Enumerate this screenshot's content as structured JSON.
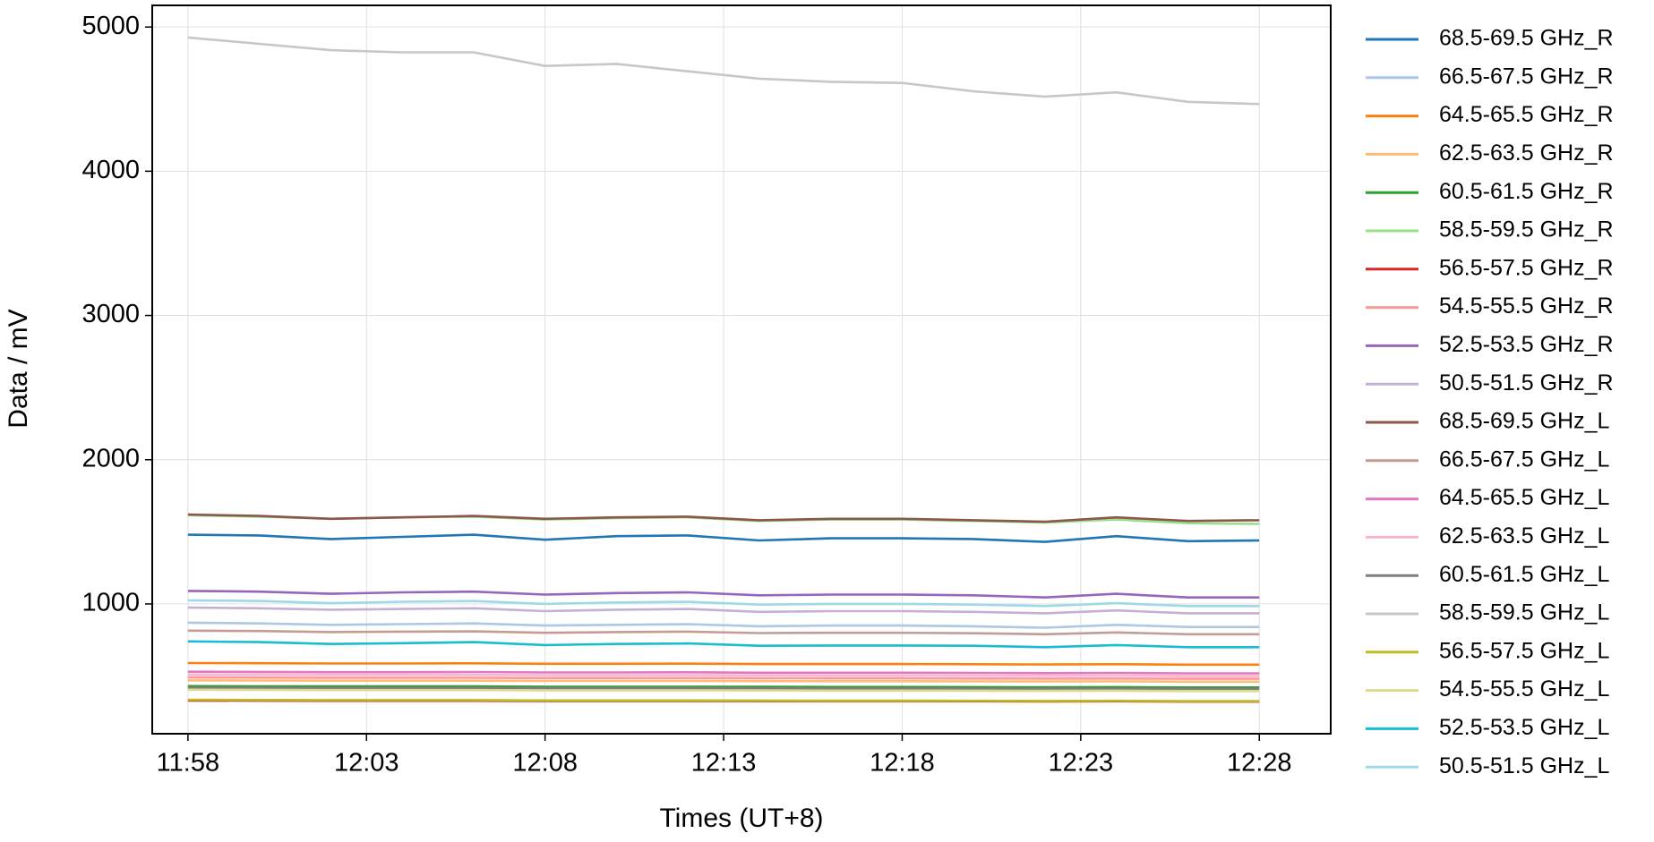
{
  "chart_data": {
    "type": "line",
    "x_label": "Times (UT+8)",
    "y_label": "Data / mV",
    "x": [
      "11:58",
      "12:00",
      "12:02",
      "12:04",
      "12:06",
      "12:08",
      "12:10",
      "12:12",
      "12:14",
      "12:16",
      "12:18",
      "12:20",
      "12:22",
      "12:24",
      "12:26",
      "12:28"
    ],
    "xlim": [
      "11:57",
      "12:30"
    ],
    "xticks": [
      "11:58",
      "12:03",
      "12:08",
      "12:13",
      "12:18",
      "12:23",
      "12:28"
    ],
    "ylim": [
      100,
      5150
    ],
    "yticks": [
      1000,
      2000,
      3000,
      4000,
      5000
    ],
    "grid": true,
    "legend": "outside right",
    "series": [
      {
        "name": "68.5-69.5 GHz_R",
        "color": "#1f77b4",
        "values": [
          1480,
          1475,
          1450,
          1465,
          1480,
          1445,
          1470,
          1475,
          1440,
          1455,
          1455,
          1450,
          1430,
          1470,
          1435,
          1440
        ]
      },
      {
        "name": "66.5-67.5 GHz_R",
        "color": "#aec7e8",
        "values": [
          870,
          865,
          855,
          860,
          865,
          850,
          855,
          860,
          845,
          850,
          850,
          845,
          835,
          855,
          840,
          840
        ]
      },
      {
        "name": "64.5-65.5 GHz_R",
        "color": "#ff7f0e",
        "values": [
          590,
          589,
          587,
          587,
          588,
          585,
          585,
          586,
          583,
          583,
          583,
          582,
          580,
          582,
          579,
          579
        ]
      },
      {
        "name": "62.5-63.5 GHz_R",
        "color": "#ffbb78",
        "values": [
          470,
          469,
          468,
          468,
          468,
          466,
          466,
          466,
          465,
          464,
          464,
          463,
          462,
          463,
          461,
          461
        ]
      },
      {
        "name": "60.5-61.5 GHz_R",
        "color": "#2ca02c",
        "values": [
          430,
          429,
          428,
          428,
          428,
          426,
          426,
          426,
          425,
          424,
          424,
          423,
          422,
          423,
          421,
          421
        ]
      },
      {
        "name": "58.5-59.5 GHz_R",
        "color": "#98df8a",
        "values": [
          1615,
          1605,
          1590,
          1600,
          1605,
          1585,
          1595,
          1600,
          1575,
          1585,
          1585,
          1575,
          1565,
          1585,
          1560,
          1555
        ]
      },
      {
        "name": "56.5-57.5 GHz_R",
        "color": "#d62728",
        "values": [
          330,
          329,
          328,
          328,
          328,
          327,
          327,
          327,
          326,
          326,
          326,
          325,
          324,
          325,
          323,
          323
        ]
      },
      {
        "name": "54.5-55.5 GHz_R",
        "color": "#ff9896",
        "values": [
          490,
          489,
          488,
          488,
          488,
          486,
          486,
          486,
          485,
          484,
          484,
          483,
          482,
          483,
          481,
          481
        ]
      },
      {
        "name": "52.5-53.5 GHz_R",
        "color": "#9467bd",
        "values": [
          1090,
          1085,
          1070,
          1080,
          1085,
          1065,
          1075,
          1080,
          1060,
          1065,
          1065,
          1060,
          1045,
          1070,
          1045,
          1045
        ]
      },
      {
        "name": "50.5-51.5 GHz_R",
        "color": "#c5b0d5",
        "values": [
          975,
          970,
          960,
          965,
          970,
          950,
          960,
          965,
          945,
          950,
          950,
          945,
          935,
          955,
          935,
          935
        ]
      },
      {
        "name": "68.5-69.5 GHz_L",
        "color": "#8c564b",
        "values": [
          1620,
          1610,
          1590,
          1600,
          1610,
          1590,
          1600,
          1605,
          1580,
          1590,
          1590,
          1580,
          1570,
          1600,
          1575,
          1580
        ]
      },
      {
        "name": "66.5-67.5 GHz_L",
        "color": "#c49c94",
        "values": [
          815,
          812,
          805,
          808,
          810,
          800,
          805,
          808,
          798,
          800,
          800,
          797,
          790,
          802,
          790,
          790
        ]
      },
      {
        "name": "64.5-65.5 GHz_L",
        "color": "#e377c2",
        "values": [
          530,
          529,
          527,
          527,
          528,
          525,
          525,
          526,
          523,
          523,
          523,
          522,
          520,
          522,
          519,
          519
        ]
      },
      {
        "name": "62.5-63.5 GHz_L",
        "color": "#f7b6d2",
        "values": [
          510,
          509,
          508,
          508,
          508,
          506,
          506,
          506,
          505,
          504,
          504,
          503,
          502,
          503,
          501,
          501
        ]
      },
      {
        "name": "60.5-61.5 GHz_L",
        "color": "#7f7f7f",
        "values": [
          420,
          419,
          418,
          418,
          418,
          416,
          416,
          416,
          415,
          414,
          414,
          413,
          412,
          413,
          411,
          411
        ]
      },
      {
        "name": "58.5-59.5 GHz_L",
        "color": "#c7c7c7",
        "values": [
          4927,
          4883,
          4839,
          4824,
          4824,
          4730,
          4744,
          4693,
          4642,
          4620,
          4612,
          4554,
          4517,
          4547,
          4481,
          4466
        ]
      },
      {
        "name": "56.5-57.5 GHz_L",
        "color": "#bcbd22",
        "values": [
          335,
          334,
          333,
          333,
          333,
          331,
          331,
          331,
          330,
          329,
          329,
          328,
          327,
          328,
          326,
          326
        ]
      },
      {
        "name": "54.5-55.5 GHz_L",
        "color": "#dbdb8d",
        "values": [
          405,
          404,
          403,
          403,
          403,
          401,
          401,
          401,
          400,
          399,
          399,
          398,
          397,
          398,
          396,
          396
        ]
      },
      {
        "name": "52.5-53.5 GHz_L",
        "color": "#17becf",
        "values": [
          740,
          735,
          722,
          728,
          735,
          715,
          722,
          726,
          710,
          712,
          712,
          710,
          700,
          715,
          700,
          700
        ]
      },
      {
        "name": "50.5-51.5 GHz_L",
        "color": "#9edae5",
        "values": [
          1025,
          1020,
          1005,
          1015,
          1020,
          1000,
          1010,
          1015,
          995,
          1000,
          1000,
          995,
          985,
          1005,
          985,
          985
        ]
      }
    ]
  }
}
